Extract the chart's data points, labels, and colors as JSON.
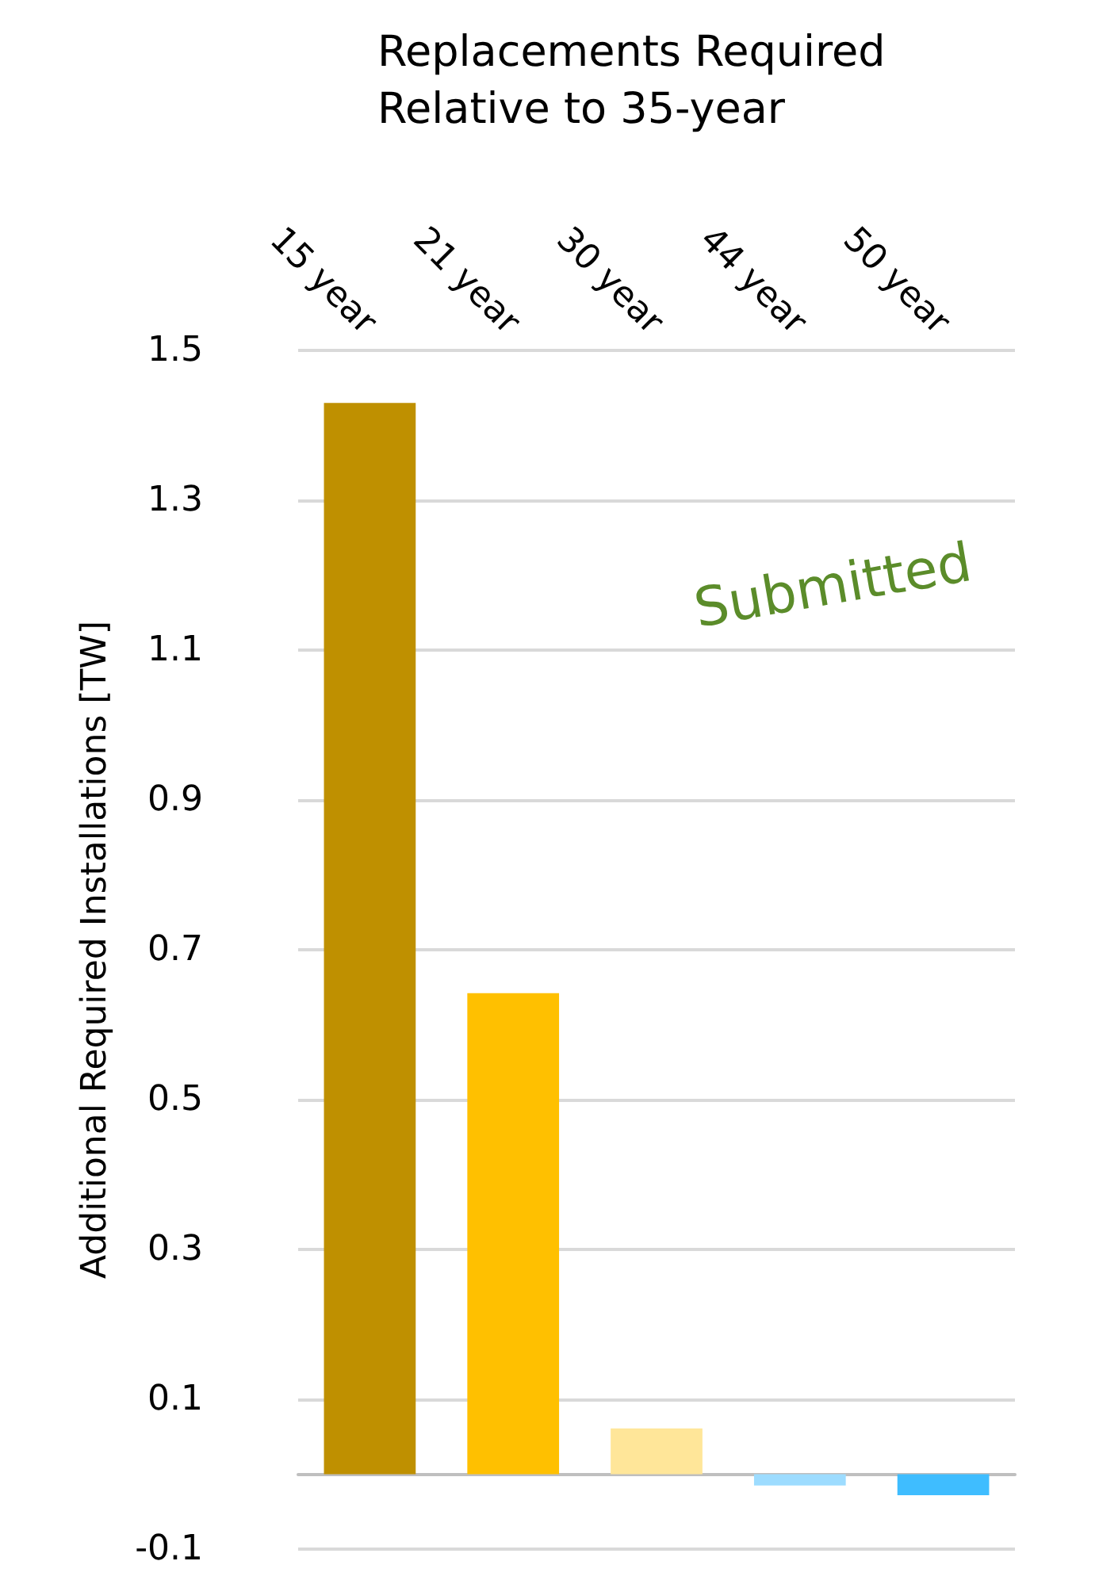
{
  "chart_data": {
    "type": "bar",
    "title": "Replacements Required Relative to 35-year",
    "ylabel": "Additional Required Installations [TW]",
    "categories": [
      "15 year",
      "21 year",
      "30 year",
      "44 year",
      "50 year"
    ],
    "values": [
      1.43,
      0.642,
      0.061,
      -0.015,
      -0.028
    ],
    "colors": [
      "#bf9000",
      "#ffc000",
      "#ffe699",
      "#9ddcff",
      "#3fbdff"
    ],
    "ylim": [
      -0.1,
      1.5
    ],
    "yticks": [
      -0.1,
      0.1,
      0.3,
      0.5,
      0.7,
      0.9,
      1.1,
      1.3,
      1.5
    ],
    "grid": "y",
    "annotations": [
      "Submitted"
    ]
  }
}
